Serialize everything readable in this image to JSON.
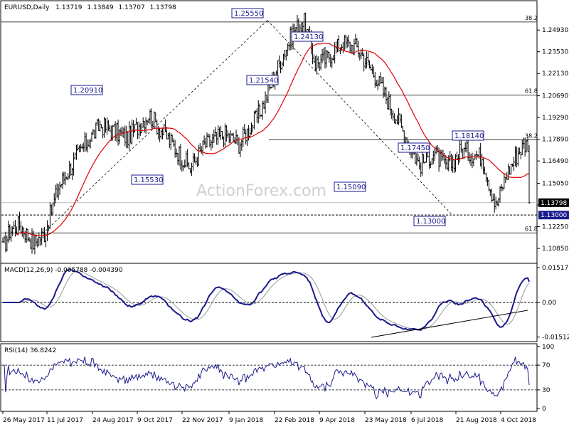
{
  "chart_data": [
    {
      "type": "candlestick",
      "title": "EURUSD,Daily",
      "ohlc": [
        "1.13719",
        "1.13849",
        "1.13707",
        "1.13798"
      ],
      "watermark": "ActionForex.com",
      "ylim": [
        1.0998,
        1.2604
      ],
      "y_ticks": [
        "1.24930",
        "1.23530",
        "1.22130",
        "1.20690",
        "1.19290",
        "1.17890",
        "1.16490",
        "1.15050",
        "1.13650",
        "1.12250",
        "1.10850"
      ],
      "last_price": "1.13798",
      "support_label": "1.13000",
      "fib_levels": [
        {
          "label": "38.2",
          "value": 1.2545
        },
        {
          "label": "61.8",
          "value": 1.2073
        },
        {
          "label": "38.2",
          "value": 1.1785
        },
        {
          "label": "61.8",
          "value": 1.1185
        }
      ],
      "annotations": [
        {
          "label": "1.25550",
          "value": 1.2555
        },
        {
          "label": "1.24130",
          "value": 1.2413
        },
        {
          "label": "1.21540",
          "value": 1.2154
        },
        {
          "label": "1.20910",
          "value": 1.2091
        },
        {
          "label": "1.18140",
          "value": 1.1814
        },
        {
          "label": "1.17450",
          "value": 1.1745
        },
        {
          "label": "1.15530",
          "value": 1.1553
        },
        {
          "label": "1.15090",
          "value": 1.1509
        },
        {
          "label": "1.13000",
          "value": 1.13
        }
      ],
      "series": [
        {
          "type": "candlestick",
          "color": "#000000"
        },
        {
          "type": "line",
          "color": "#e00000"
        }
      ],
      "x_ticks": [
        "26 May 2017",
        "11 Jul 2017",
        "24 Aug 2017",
        "9 Oct 2017",
        "22 Nov 2017",
        "9 Jan 2018",
        "22 Feb 2018",
        "9 Apr 2018",
        "23 May 2018",
        "6 Jul 2018",
        "21 Aug 2018",
        "4 Oct 2018"
      ],
      "trendlines": [
        "dashed",
        "dashed"
      ]
    },
    {
      "type": "line",
      "title": "MACD(12,26,9) -0.005788 -0.004390",
      "ylim": [
        -0.0165,
        0.0165
      ],
      "y_ticks": [
        "0.015178",
        "0.00",
        "-0.015126"
      ],
      "series": [
        {
          "type": "line",
          "color": "#1a1a8c"
        },
        {
          "type": "line",
          "color": "#9a9a9a"
        }
      ],
      "trendline": "solid"
    },
    {
      "type": "line",
      "title": "RSI(14) 36.8242",
      "ylim": [
        0,
        100
      ],
      "y_ticks": [
        "100",
        "70",
        "30",
        "0"
      ],
      "series": [
        {
          "type": "line",
          "color": "#1a1a8c"
        }
      ],
      "levels": [
        70,
        30
      ]
    }
  ]
}
